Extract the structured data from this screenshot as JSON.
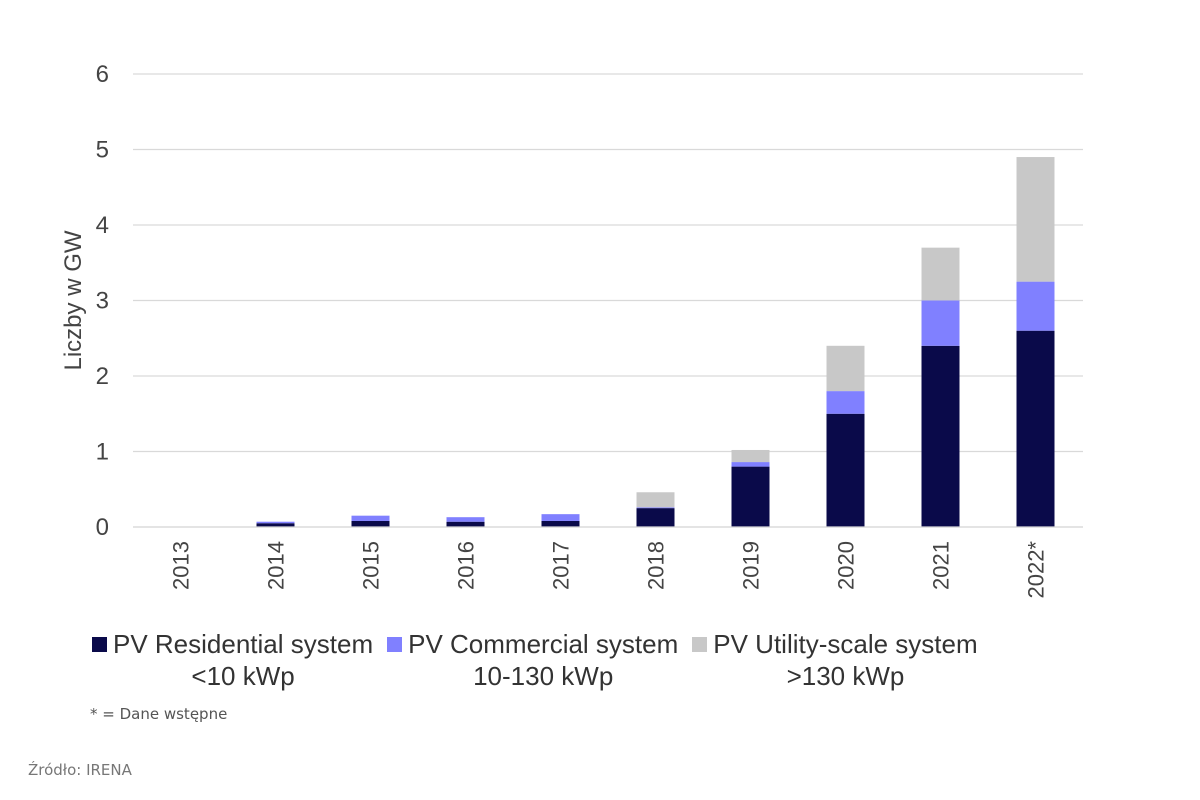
{
  "chart_data": {
    "type": "bar",
    "stacked": true,
    "categories": [
      "2013",
      "2014",
      "2015",
      "2016",
      "2017",
      "2018",
      "2019",
      "2020",
      "2021",
      "2022*"
    ],
    "series": [
      {
        "name_lines": [
          "PV Residential system",
          "<10 kWp"
        ],
        "color": "#0a0a4a",
        "values": [
          0.0,
          0.05,
          0.08,
          0.07,
          0.08,
          0.25,
          0.8,
          1.5,
          2.4,
          2.6
        ]
      },
      {
        "name_lines": [
          "PV Commercial system",
          "10-130 kWp"
        ],
        "color": "#8080ff",
        "values": [
          0.0,
          0.02,
          0.07,
          0.06,
          0.09,
          0.01,
          0.06,
          0.3,
          0.6,
          0.65
        ]
      },
      {
        "name_lines": [
          "PV Utility-scale system",
          ">130 kWp"
        ],
        "color": "#c8c8c8",
        "values": [
          0.0,
          0.0,
          0.0,
          0.0,
          0.0,
          0.2,
          0.16,
          0.6,
          0.7,
          1.65
        ]
      }
    ],
    "ylabel": "Liczby w GW",
    "xlabel": "",
    "ylim": [
      0,
      6
    ],
    "yticks": [
      "0",
      "1",
      "2",
      "3",
      "4",
      "5",
      "6"
    ],
    "grid": true,
    "legend_position": "bottom"
  },
  "footnote": "* = Dane wstępne",
  "source": "Źródło: IRENA"
}
